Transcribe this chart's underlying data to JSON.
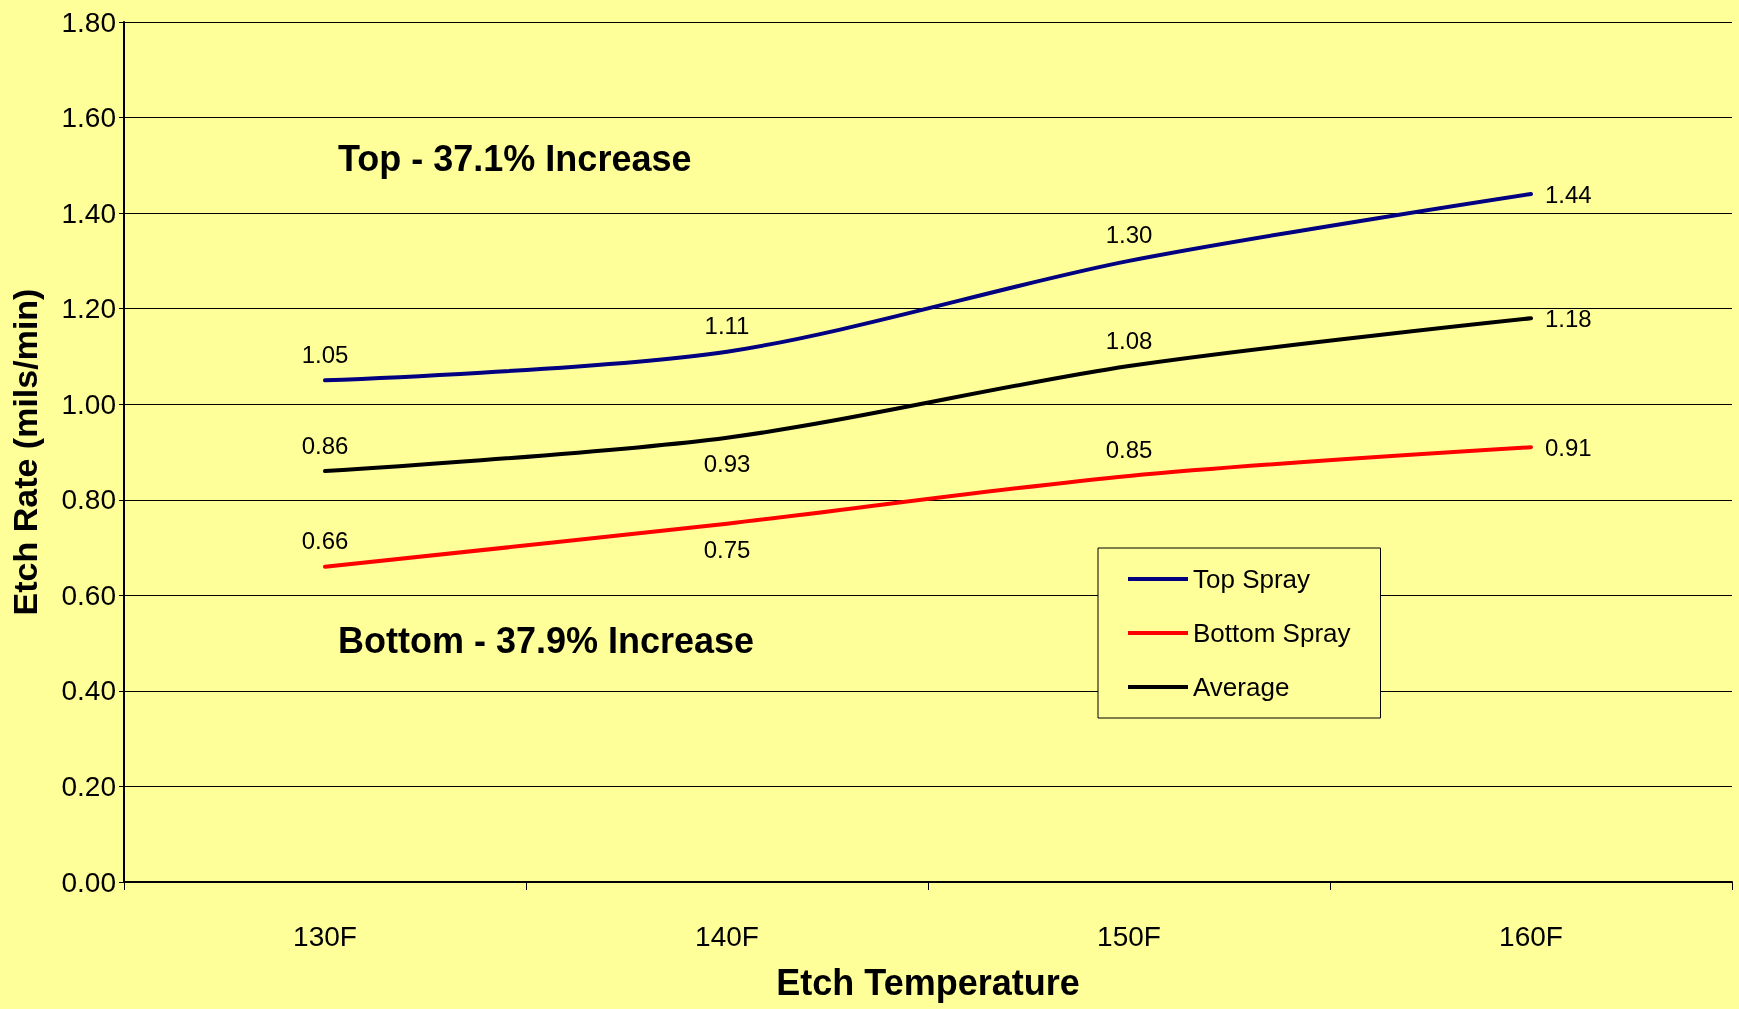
{
  "chart_data": {
    "type": "line",
    "xlabel": "Etch Temperature",
    "ylabel": "Etch Rate (mils/min)",
    "categories": [
      "130F",
      "140F",
      "150F",
      "160F"
    ],
    "series": [
      {
        "name": "Top Spray",
        "color": "#000080",
        "values": [
          1.05,
          1.11,
          1.3,
          1.44
        ],
        "value_labels": [
          "1.05",
          "1.11",
          "1.30",
          "1.44"
        ]
      },
      {
        "name": "Bottom Spray",
        "color": "#ff0000",
        "values": [
          0.66,
          0.75,
          0.85,
          0.91
        ],
        "value_labels": [
          "0.66",
          "0.75",
          "0.85",
          "0.91"
        ]
      },
      {
        "name": "Average",
        "color": "#000000",
        "values": [
          0.86,
          0.93,
          1.08,
          1.18
        ],
        "value_labels": [
          "0.86",
          "0.93",
          "1.08",
          "1.18"
        ]
      }
    ],
    "ylim": [
      0,
      1.8
    ],
    "yticks": [
      {
        "value": 0,
        "label": "0.00"
      },
      {
        "value": 0.2,
        "label": "0.20"
      },
      {
        "value": 0.4,
        "label": "0.40"
      },
      {
        "value": 0.6,
        "label": "0.60"
      },
      {
        "value": 0.8,
        "label": "0.80"
      },
      {
        "value": 1.0,
        "label": "1.00"
      },
      {
        "value": 1.2,
        "label": "1.20"
      },
      {
        "value": 1.4,
        "label": "1.40"
      },
      {
        "value": 1.6,
        "label": "1.60"
      },
      {
        "value": 1.8,
        "label": "1.80"
      }
    ],
    "annotations": [
      "Top - 37.1% Increase",
      "Bottom - 37.9% Increase"
    ],
    "grid": "y",
    "legend": "right",
    "marker": "none",
    "line_style": "solid"
  }
}
